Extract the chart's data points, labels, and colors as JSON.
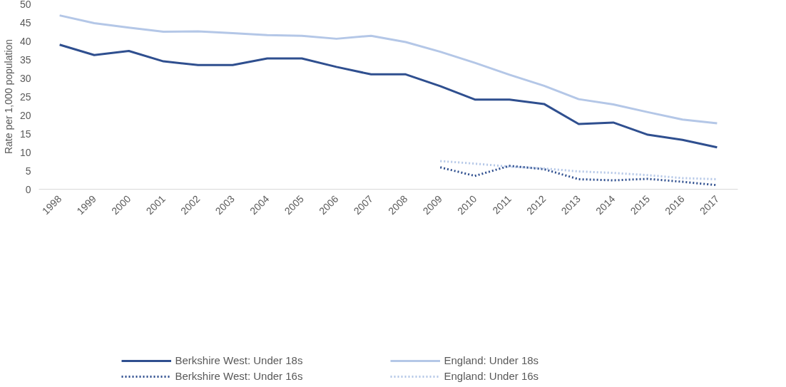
{
  "chart_data": {
    "type": "line",
    "ylabel": "Rate per 1,000 population",
    "categories": [
      "1998",
      "1999",
      "2000",
      "2001",
      "2002",
      "2003",
      "2004",
      "2005",
      "2006",
      "2007",
      "2008",
      "2009",
      "2010",
      "2011",
      "2012",
      "2013",
      "2014",
      "2015",
      "2016",
      "2017"
    ],
    "ylim": [
      0,
      50
    ],
    "yticks": [
      0,
      5,
      10,
      15,
      20,
      25,
      30,
      35,
      40,
      45,
      50
    ],
    "grid": false,
    "legend": "bottom",
    "marker": "none",
    "series": [
      {
        "name": "Berkshire West: Under 18s",
        "color": "#2f4f8f",
        "line_style": "solid",
        "values": [
          39,
          36.2,
          37.3,
          34.5,
          33.5,
          33.5,
          35.3,
          35.3,
          33,
          31,
          31,
          27.8,
          24.2,
          24.2,
          23,
          17.6,
          18,
          14.7,
          13.3,
          11.3
        ]
      },
      {
        "name": "England: Under 18s",
        "color": "#b4c7e7",
        "line_style": "solid",
        "values": [
          46.9,
          44.8,
          43.6,
          42.5,
          42.6,
          42.1,
          41.6,
          41.4,
          40.6,
          41.4,
          39.7,
          37.1,
          34.1,
          30.9,
          27.9,
          24.3,
          22.9,
          20.8,
          18.8,
          17.8
        ]
      },
      {
        "name": "Berkshire West: Under 16s",
        "color": "#2f4f8f",
        "line_style": "dotted",
        "values": [
          null,
          null,
          null,
          null,
          null,
          null,
          null,
          null,
          null,
          null,
          null,
          5.9,
          3.6,
          6.3,
          5.4,
          2.7,
          2.4,
          2.8,
          2.0,
          1.1
        ]
      },
      {
        "name": "England: Under 16s",
        "color": "#b4c7e7",
        "line_style": "dotted",
        "values": [
          null,
          null,
          null,
          null,
          null,
          null,
          null,
          null,
          null,
          null,
          null,
          7.6,
          6.9,
          6.1,
          5.6,
          4.8,
          4.4,
          3.8,
          3.0,
          2.7
        ]
      }
    ]
  }
}
